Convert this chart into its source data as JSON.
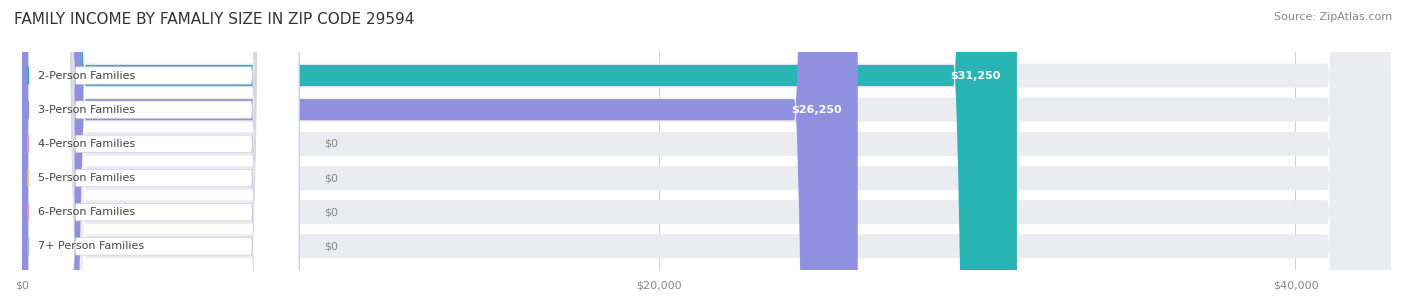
{
  "title": "FAMILY INCOME BY FAMALIY SIZE IN ZIP CODE 29594",
  "source": "Source: ZipAtlas.com",
  "categories": [
    "2-Person Families",
    "3-Person Families",
    "4-Person Families",
    "5-Person Families",
    "6-Person Families",
    "7+ Person Families"
  ],
  "values": [
    31250,
    26250,
    0,
    0,
    0,
    0
  ],
  "bar_colors": [
    "#2ab5b5",
    "#9090e0",
    "#f59ab0",
    "#f5c878",
    "#f0a0a0",
    "#90b8e8"
  ],
  "label_colors": [
    "#2ab5b5",
    "#9090e0",
    "#f59ab0",
    "#f5c878",
    "#f0a0a0",
    "#90b8e8"
  ],
  "bar_bg_color": "#f0f0f5",
  "row_bg_colors": [
    "#f5f5f8",
    "#f5f5f8",
    "#f5f5f8",
    "#f5f5f8",
    "#f5f5f8",
    "#f5f5f8"
  ],
  "xlim": [
    0,
    43000
  ],
  "xticks": [
    0,
    20000,
    40000
  ],
  "xtick_labels": [
    "$0",
    "$20,000",
    "$40,000"
  ],
  "value_labels": [
    "$31,250",
    "$26,250",
    "$0",
    "$0",
    "$0",
    "$0"
  ],
  "title_fontsize": 11,
  "source_fontsize": 8,
  "label_fontsize": 8,
  "value_fontsize": 8,
  "tick_fontsize": 8,
  "background_color": "#ffffff"
}
